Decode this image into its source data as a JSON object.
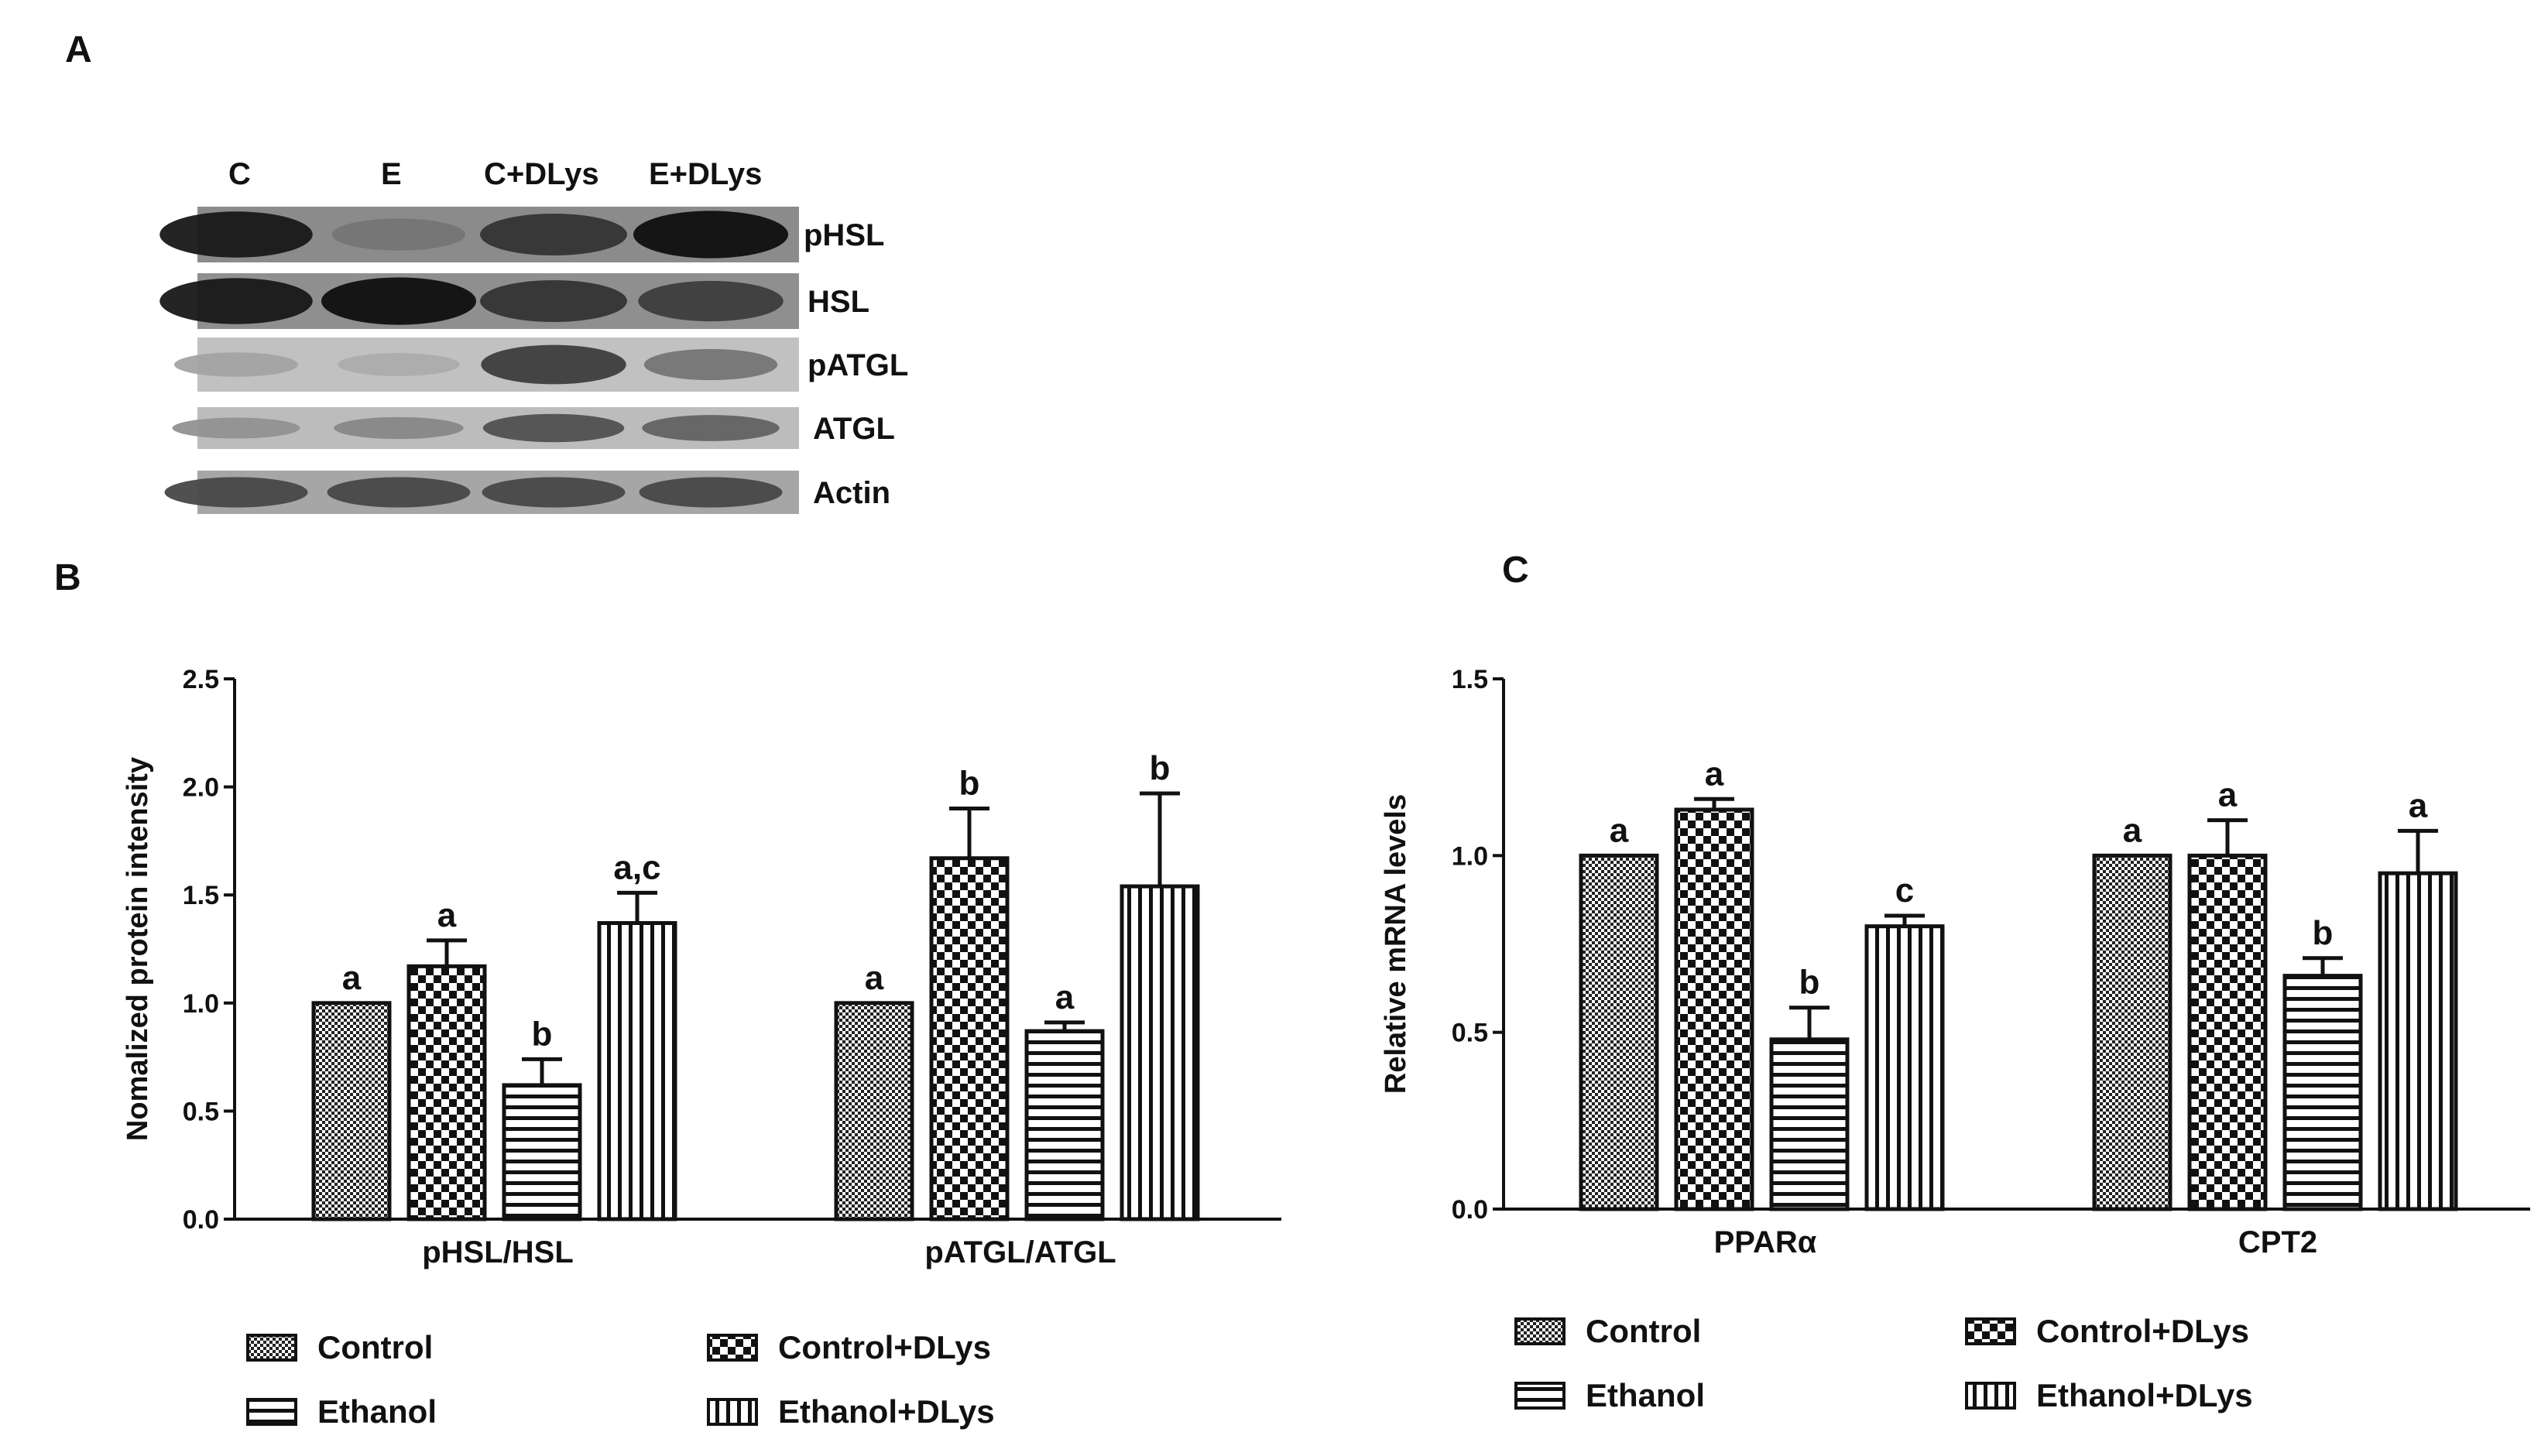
{
  "panels": {
    "a": "A",
    "b": "B",
    "c": "C"
  },
  "colors": {
    "ink": "#111111",
    "bar_fill": "#ffffff",
    "blot_dark": "#1c1c1c",
    "blot_bg": "#b9b9b9"
  },
  "western_blot": {
    "lanes": [
      "C",
      "E",
      "C+DLys",
      "E+DLys"
    ],
    "bands": [
      {
        "label": "pHSL",
        "intensity": [
          0.95,
          0.45,
          0.8,
          1.0
        ],
        "background": 0.85
      },
      {
        "label": "HSL",
        "intensity": [
          0.95,
          1.0,
          0.8,
          0.75
        ],
        "background": 0.8
      },
      {
        "label": "pATGL",
        "intensity": [
          0.2,
          0.15,
          0.75,
          0.45
        ],
        "background": 0.25
      },
      {
        "label": "ATGL",
        "intensity": [
          0.3,
          0.35,
          0.65,
          0.55
        ],
        "background": 0.3
      },
      {
        "label": "Actin",
        "intensity": [
          0.7,
          0.7,
          0.7,
          0.7
        ],
        "background": 0.55
      }
    ]
  },
  "chart_data": [
    {
      "type": "bar",
      "panel": "B",
      "title": "",
      "xlabel": "",
      "ylabel": "Nomalized protein intensity",
      "ylim": [
        0,
        2.5
      ],
      "yticks": [
        "0.0",
        "0.5",
        "1.0",
        "1.5",
        "2.0",
        "2.5"
      ],
      "ytick_values": [
        0,
        0.5,
        1.0,
        1.5,
        2.0,
        2.5
      ],
      "categories": [
        "pHSL/HSL",
        "pATGL/ATGL"
      ],
      "series": [
        {
          "name": "Control",
          "pattern": "dots",
          "values": [
            1.0,
            1.0
          ],
          "errors": [
            0.0,
            0.0
          ],
          "labels": [
            "a",
            "a"
          ]
        },
        {
          "name": "Control+DLys",
          "pattern": "check",
          "values": [
            1.17,
            1.67
          ],
          "errors": [
            0.12,
            0.23
          ],
          "labels": [
            "a",
            "b"
          ]
        },
        {
          "name": "Ethanol",
          "pattern": "hline",
          "values": [
            0.62,
            0.87
          ],
          "errors": [
            0.12,
            0.04
          ],
          "labels": [
            "b",
            "a"
          ]
        },
        {
          "name": "Ethanol+DLys",
          "pattern": "vline",
          "values": [
            1.37,
            1.54
          ],
          "errors": [
            0.14,
            0.43
          ],
          "labels": [
            "a,c",
            "b"
          ]
        }
      ],
      "legend": [
        "Control",
        "Control+DLys",
        "Ethanol",
        "Ethanol+DLys"
      ],
      "grid": false
    },
    {
      "type": "bar",
      "panel": "C",
      "title": "",
      "xlabel": "",
      "ylabel": "Relative mRNA levels",
      "ylim": [
        0,
        1.5
      ],
      "yticks": [
        "0.0",
        "0.5",
        "1.0",
        "1.5"
      ],
      "ytick_values": [
        0,
        0.5,
        1.0,
        1.5
      ],
      "categories": [
        "PPARα",
        "CPT2"
      ],
      "series": [
        {
          "name": "Control",
          "pattern": "dots",
          "values": [
            1.0,
            1.0
          ],
          "errors": [
            0.0,
            0.0
          ],
          "labels": [
            "a",
            "a"
          ]
        },
        {
          "name": "Control+DLys",
          "pattern": "check",
          "values": [
            1.13,
            1.0
          ],
          "errors": [
            0.03,
            0.1
          ],
          "labels": [
            "a",
            "a"
          ]
        },
        {
          "name": "Ethanol",
          "pattern": "hline",
          "values": [
            0.48,
            0.66
          ],
          "errors": [
            0.09,
            0.05
          ],
          "labels": [
            "b",
            "b"
          ]
        },
        {
          "name": "Ethanol+DLys",
          "pattern": "vline",
          "values": [
            0.8,
            0.95
          ],
          "errors": [
            0.03,
            0.12
          ],
          "labels": [
            "c",
            "a"
          ]
        }
      ],
      "legend": [
        "Control",
        "Control+DLys",
        "Ethanol",
        "Ethanol+DLys"
      ],
      "grid": false
    }
  ]
}
